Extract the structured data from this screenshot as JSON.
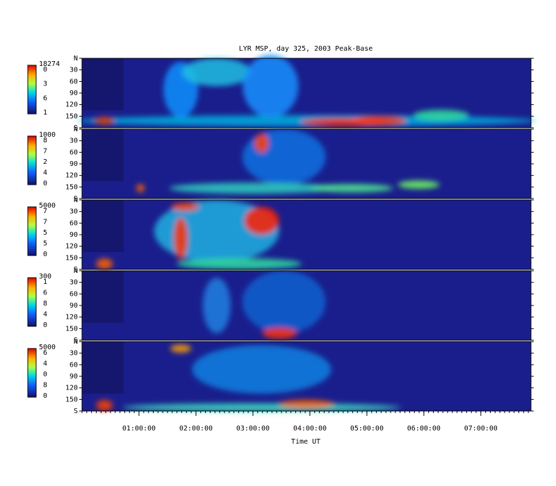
{
  "chart_data": {
    "type": "keogram",
    "title": "LYR MSP, day 325, 2003 Peak-Base",
    "xlabel": "Time UT",
    "xlim": [
      0,
      7.88
    ],
    "xticks": [
      {
        "value": 1,
        "label": "01:00:00"
      },
      {
        "value": 2,
        "label": "02:00:00"
      },
      {
        "value": 3,
        "label": "03:00:00"
      },
      {
        "value": 4,
        "label": "04:00:00"
      },
      {
        "value": 5,
        "label": "05:00:00"
      },
      {
        "value": 6,
        "label": "06:00:00"
      },
      {
        "value": 7,
        "label": "07:00:00"
      }
    ],
    "ylim": [
      0,
      180
    ],
    "yticks": [
      {
        "value": 0,
        "label": "N"
      },
      30,
      60,
      90,
      120,
      150,
      {
        "value": 180,
        "label": "S"
      }
    ],
    "panels": [
      {
        "colorbar_labels": [
          "18274",
          "0",
          "3",
          "6",
          "1"
        ]
      },
      {
        "colorbar_labels": [
          "1000",
          "8",
          "7",
          "2",
          "4",
          "0"
        ]
      },
      {
        "colorbar_labels": [
          "5000",
          "7",
          "7",
          "5",
          "5",
          "0"
        ]
      },
      {
        "colorbar_labels": [
          "300",
          "1",
          "6",
          "8",
          "4",
          "0"
        ]
      },
      {
        "colorbar_labels": [
          "5000",
          "6",
          "4",
          "0",
          "8",
          "0"
        ]
      }
    ]
  }
}
